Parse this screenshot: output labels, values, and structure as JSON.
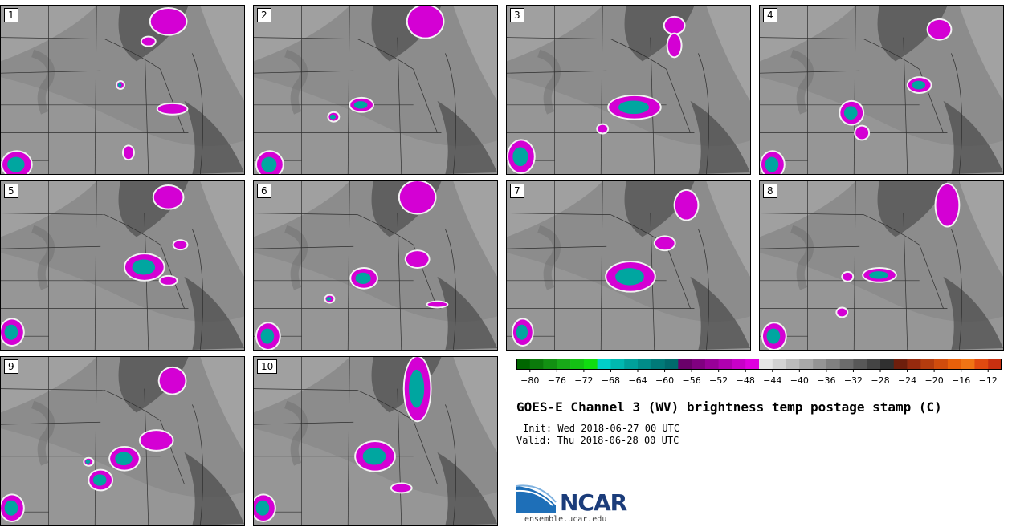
{
  "panels": [
    {
      "label": "1"
    },
    {
      "label": "2"
    },
    {
      "label": "3"
    },
    {
      "label": "4"
    },
    {
      "label": "5"
    },
    {
      "label": "6"
    },
    {
      "label": "7"
    },
    {
      "label": "8"
    },
    {
      "label": "9"
    },
    {
      "label": "10"
    }
  ],
  "colorbar": {
    "ticks": [
      "−80",
      "−76",
      "−72",
      "−68",
      "−64",
      "−60",
      "−56",
      "−52",
      "−48",
      "−44",
      "−40",
      "−36",
      "−32",
      "−28",
      "−24",
      "−20",
      "−16",
      "−12"
    ],
    "colors": [
      "#006600",
      "#0b7a0b",
      "#129012",
      "#18a818",
      "#14c214",
      "#10dc10",
      "#00d0c8",
      "#00b8b0",
      "#00a09a",
      "#008c88",
      "#007a78",
      "#006a6c",
      "#6a006a",
      "#800080",
      "#980098",
      "#b000b0",
      "#c800c8",
      "#e000e0",
      "#e6e6e6",
      "#d2d2d2",
      "#bcbcbc",
      "#a8a8a8",
      "#949494",
      "#808080",
      "#6c6c6c",
      "#585858",
      "#444444",
      "#303030",
      "#6e1e0c",
      "#962a0e",
      "#b43c0e",
      "#d04c0c",
      "#e8600a",
      "#f07414",
      "#e04a10",
      "#c83010"
    ],
    "range": [
      -82,
      -10
    ]
  },
  "title": "GOES-E Channel 3 (WV) brightness temp postage stamp (C)",
  "init_text": "Init: Wed 2018-06-27 00 UTC",
  "valid_text": "Valid: Thu 2018-06-28 00 UTC",
  "logo": {
    "name": "NCAR",
    "url": "ensemble.ucar.edu"
  }
}
